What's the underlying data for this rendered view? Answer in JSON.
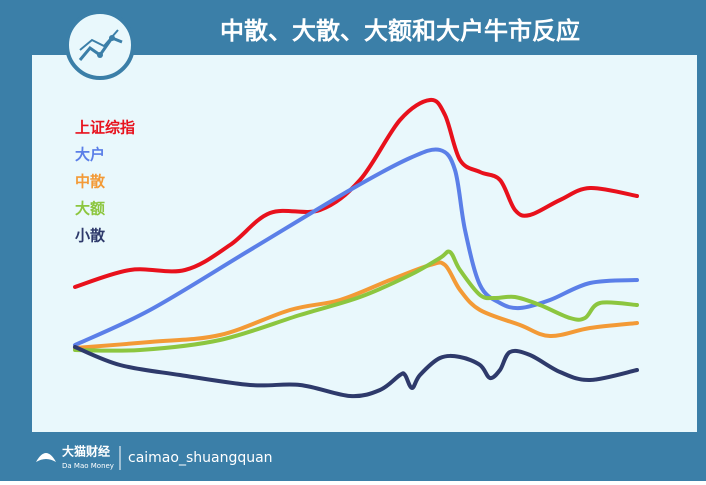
{
  "chart_data": {
    "type": "line",
    "title": "中散、大散、大额和大户牛市反应",
    "xlim": [
      0,
      562
    ],
    "ylim": [
      0,
      377
    ],
    "series": [
      {
        "name": "上证综指",
        "color": "#e8111c",
        "x": [
          0,
          55,
          110,
          155,
          195,
          245,
          285,
          325,
          355,
          370,
          385,
          405,
          425,
          440,
          455,
          485,
          515,
          562
        ],
        "values": [
          145,
          162,
          162,
          187,
          219,
          222,
          252,
          312,
          332,
          317,
          272,
          260,
          252,
          222,
          217,
          232,
          244,
          236
        ]
      },
      {
        "name": "大户",
        "color": "#5b7fe8",
        "x": [
          0,
          75,
          175,
          275,
          335,
          365,
          380,
          390,
          405,
          425,
          445,
          475,
          515,
          562
        ],
        "values": [
          87,
          122,
          182,
          242,
          274,
          282,
          262,
          202,
          147,
          129,
          124,
          132,
          149,
          152
        ]
      },
      {
        "name": "中散",
        "color": "#f39a36",
        "x": [
          0,
          75,
          145,
          215,
          265,
          315,
          355,
          370,
          385,
          405,
          445,
          475,
          515,
          562
        ],
        "values": [
          84,
          90,
          97,
          122,
          132,
          152,
          167,
          167,
          142,
          122,
          107,
          96,
          104,
          109
        ]
      },
      {
        "name": "大额",
        "color": "#8cc63f",
        "x": [
          0,
          65,
          145,
          225,
          285,
          335,
          365,
          375,
          385,
          405,
          420,
          440,
          465,
          495,
          510,
          525,
          562
        ],
        "values": [
          82,
          82,
          92,
          117,
          135,
          157,
          174,
          180,
          162,
          137,
          134,
          135,
          127,
          114,
          114,
          129,
          127
        ]
      },
      {
        "name": "小散",
        "color": "#2e3a6b",
        "x": [
          0,
          45,
          105,
          175,
          225,
          275,
          305,
          325,
          330,
          337,
          345,
          365,
          385,
          405,
          415,
          425,
          435,
          455,
          485,
          515,
          562
        ],
        "values": [
          85,
          67,
          57,
          47,
          47,
          36,
          42,
          57,
          57,
          44,
          57,
          74,
          75,
          67,
          54,
          62,
          80,
          77,
          60,
          52,
          62
        ]
      }
    ]
  },
  "footer": {
    "brand": "大猫财经",
    "brand_en": "Da Mao Money",
    "handle": "caimao_shuangquan"
  }
}
